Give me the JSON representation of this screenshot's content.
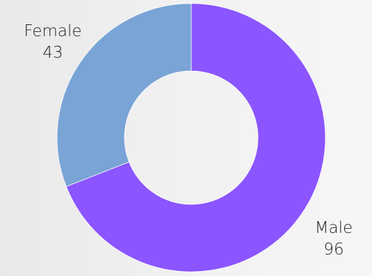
{
  "chart_data": {
    "type": "pie",
    "donut": true,
    "slices": [
      {
        "label": "Male",
        "value": 96,
        "color": "#8b55ff"
      },
      {
        "label": "Female",
        "value": 43,
        "color": "#7aa4d6"
      }
    ],
    "start_angle_deg": 0,
    "direction": "clockwise",
    "data_labels_show": [
      "category",
      "value"
    ]
  }
}
